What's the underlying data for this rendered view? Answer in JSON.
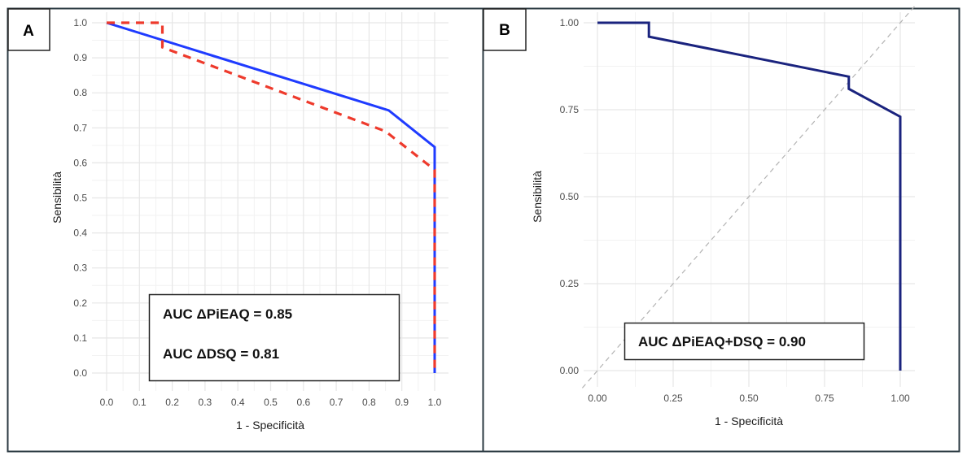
{
  "chart_data": [
    {
      "type": "line",
      "panel": "A",
      "title": "",
      "xlabel": "1 - Specificità",
      "ylabel": "Sensibilità",
      "xlim": [
        0,
        1
      ],
      "ylim": [
        0,
        1
      ],
      "x_ticks": [
        "0.0",
        "0.1",
        "0.2",
        "0.3",
        "0.4",
        "0.5",
        "0.6",
        "0.7",
        "0.8",
        "0.9",
        "1.0"
      ],
      "y_ticks": [
        "0.0",
        "0.1",
        "0.2",
        "0.3",
        "0.4",
        "0.5",
        "0.6",
        "0.7",
        "0.8",
        "0.9",
        "1.0"
      ],
      "grid": true,
      "series": [
        {
          "name": "ΔPiEAQ",
          "color": "#1f3bff",
          "style": "solid",
          "points": [
            [
              0,
              1.0
            ],
            [
              0.86,
              0.75
            ],
            [
              1.0,
              0.645
            ],
            [
              1.0,
              0.0
            ]
          ]
        },
        {
          "name": "ΔDSQ",
          "color": "#ee3a2c",
          "style": "dashed",
          "points": [
            [
              0,
              1.0
            ],
            [
              0.17,
              1.0
            ],
            [
              0.17,
              0.93
            ],
            [
              0.85,
              0.69
            ],
            [
              1.0,
              0.58
            ],
            [
              1.0,
              0.0
            ]
          ]
        }
      ],
      "annotations": [
        "AUC ΔPiEAQ = 0.85",
        "AUC ΔDSQ = 0.81"
      ],
      "legend": "none"
    },
    {
      "type": "line",
      "panel": "B",
      "title": "",
      "xlabel": "1 - Specificità",
      "ylabel": "Sensibilità",
      "xlim": [
        0,
        1
      ],
      "ylim": [
        0,
        1
      ],
      "x_ticks": [
        "0.00",
        "0.25",
        "0.50",
        "0.75",
        "1.00"
      ],
      "y_ticks": [
        "0.00",
        "0.25",
        "0.50",
        "0.75",
        "1.00"
      ],
      "grid": true,
      "series": [
        {
          "name": "ΔPiEAQ+DSQ",
          "color": "#1a237e",
          "style": "solid",
          "points": [
            [
              0,
              1.0
            ],
            [
              0.17,
              1.0
            ],
            [
              0.17,
              0.96
            ],
            [
              0.83,
              0.845
            ],
            [
              0.83,
              0.81
            ],
            [
              1.0,
              0.73
            ],
            [
              1.0,
              0.0
            ]
          ]
        },
        {
          "name": "reference",
          "color": "#b3b3b3",
          "style": "dashed",
          "points": [
            [
              -0.05,
              -0.05
            ],
            [
              1.05,
              1.05
            ]
          ]
        }
      ],
      "annotations": [
        "AUC ΔPiEAQ+DSQ = 0.90"
      ],
      "legend": "none"
    }
  ],
  "panels": {
    "a": {
      "label": "A",
      "legend_lines": [
        "AUC ΔPiEAQ = 0.85",
        "AUC ΔDSQ = 0.81"
      ]
    },
    "b": {
      "label": "B",
      "legend_lines": [
        "AUC ΔPiEAQ+DSQ = 0.90"
      ]
    }
  }
}
